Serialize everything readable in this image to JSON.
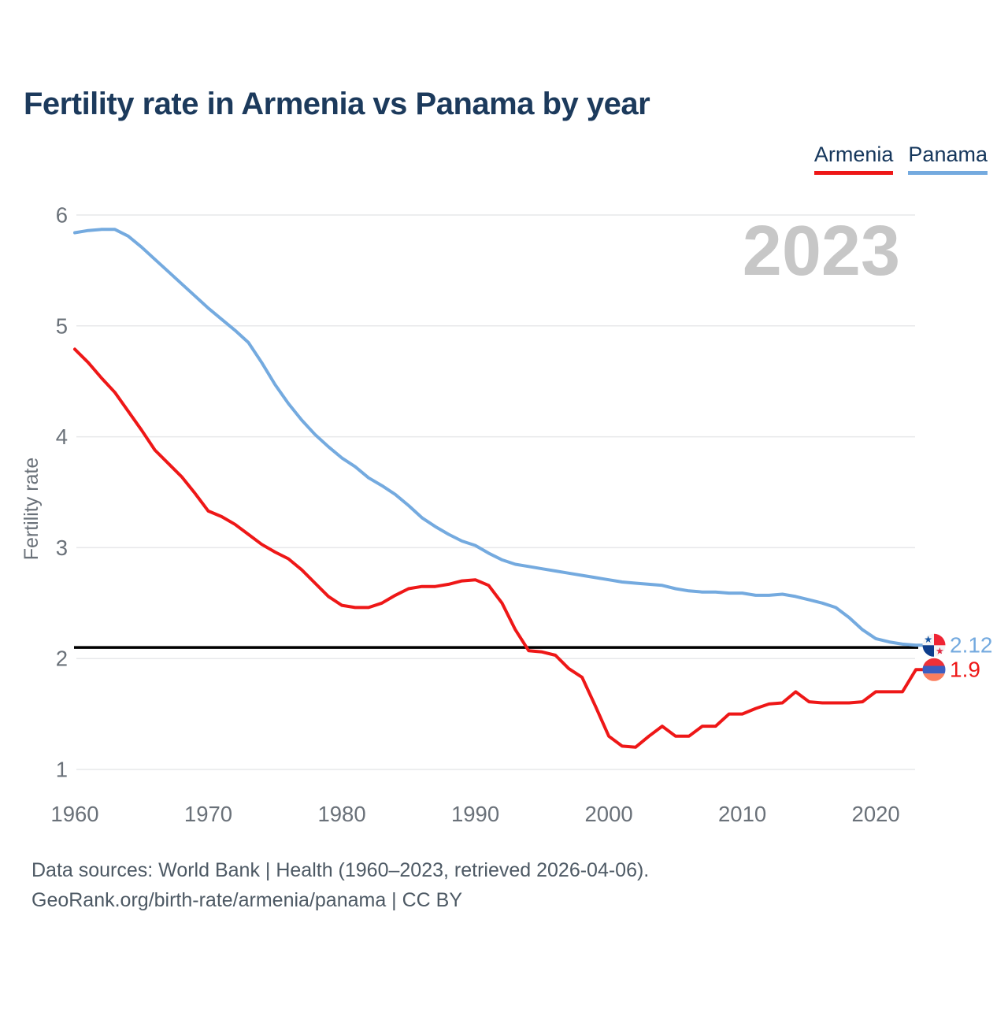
{
  "header": {
    "title": "Fertility rate in Armenia vs Panama by year"
  },
  "legend": [
    {
      "label": "Armenia",
      "color": "#ee1717"
    },
    {
      "label": "Panama",
      "color": "#74aadf"
    }
  ],
  "watermark": "2023",
  "chart_data": {
    "type": "line",
    "title": "Fertility rate in Armenia vs Panama by year",
    "xlabel": "",
    "ylabel": "Fertility rate",
    "xlim": [
      1960,
      2023
    ],
    "ylim": [
      1,
      6
    ],
    "x_ticks": [
      1960,
      1970,
      1980,
      1990,
      2000,
      2010,
      2020
    ],
    "y_ticks": [
      1,
      2,
      3,
      4,
      5,
      6
    ],
    "grid": "horizontal",
    "legend_position": "top-right",
    "reference_line": {
      "value": 2.1,
      "color": "#000000"
    },
    "years": [
      1960,
      1961,
      1962,
      1963,
      1964,
      1965,
      1966,
      1967,
      1968,
      1969,
      1970,
      1971,
      1972,
      1973,
      1974,
      1975,
      1976,
      1977,
      1978,
      1979,
      1980,
      1981,
      1982,
      1983,
      1984,
      1985,
      1986,
      1987,
      1988,
      1989,
      1990,
      1991,
      1992,
      1993,
      1994,
      1995,
      1996,
      1997,
      1998,
      1999,
      2000,
      2001,
      2002,
      2003,
      2004,
      2005,
      2006,
      2007,
      2008,
      2009,
      2010,
      2011,
      2012,
      2013,
      2014,
      2015,
      2016,
      2017,
      2018,
      2019,
      2020,
      2021,
      2022,
      2023
    ],
    "series": [
      {
        "name": "Panama",
        "color": "#74aadf",
        "end_label": "2.12",
        "end_value": 2.12,
        "values": [
          5.84,
          5.86,
          5.87,
          5.87,
          5.81,
          5.71,
          5.6,
          5.49,
          5.38,
          5.27,
          5.16,
          5.06,
          4.96,
          4.85,
          4.67,
          4.47,
          4.3,
          4.15,
          4.02,
          3.91,
          3.81,
          3.73,
          3.63,
          3.56,
          3.48,
          3.38,
          3.27,
          3.19,
          3.12,
          3.06,
          3.02,
          2.95,
          2.89,
          2.85,
          2.83,
          2.81,
          2.79,
          2.77,
          2.75,
          2.73,
          2.71,
          2.69,
          2.68,
          2.67,
          2.66,
          2.63,
          2.61,
          2.6,
          2.6,
          2.59,
          2.59,
          2.57,
          2.57,
          2.58,
          2.56,
          2.53,
          2.5,
          2.46,
          2.37,
          2.26,
          2.18,
          2.15,
          2.13,
          2.12
        ]
      },
      {
        "name": "Armenia",
        "color": "#ee1717",
        "end_label": "1.9",
        "end_value": 1.9,
        "values": [
          4.79,
          4.67,
          4.53,
          4.4,
          4.23,
          4.06,
          3.88,
          3.76,
          3.64,
          3.49,
          3.33,
          3.28,
          3.21,
          3.12,
          3.03,
          2.96,
          2.9,
          2.8,
          2.68,
          2.56,
          2.48,
          2.46,
          2.46,
          2.5,
          2.57,
          2.63,
          2.65,
          2.65,
          2.67,
          2.7,
          2.71,
          2.66,
          2.5,
          2.26,
          2.07,
          2.06,
          2.03,
          1.91,
          1.83,
          1.57,
          1.3,
          1.21,
          1.2,
          1.3,
          1.39,
          1.3,
          1.3,
          1.39,
          1.39,
          1.5,
          1.5,
          1.55,
          1.59,
          1.6,
          1.7,
          1.61,
          1.6,
          1.6,
          1.6,
          1.61,
          1.7,
          1.7,
          1.7,
          1.9
        ]
      }
    ]
  },
  "end_markers": [
    {
      "series": "Panama",
      "value_label": "2.12",
      "flag": "panama-flag-icon"
    },
    {
      "series": "Armenia",
      "value_label": "1.9",
      "flag": "armenia-flag-icon"
    }
  ],
  "footer": {
    "line1": "Data sources: World Bank | Health (1960–2023, retrieved 2026-04-06).",
    "line2": "GeoRank.org/birth-rate/armenia/panama | CC BY"
  },
  "colors": {
    "title_text": "#1c3a5c",
    "axis_text": "#6a7179",
    "gridline": "#e7e8ea",
    "watermark": "#c7c7c7",
    "reference_line": "#000000",
    "footer_text": "#4d5964",
    "armenia_red": "#ee1717",
    "panama_blue": "#74aadf"
  }
}
